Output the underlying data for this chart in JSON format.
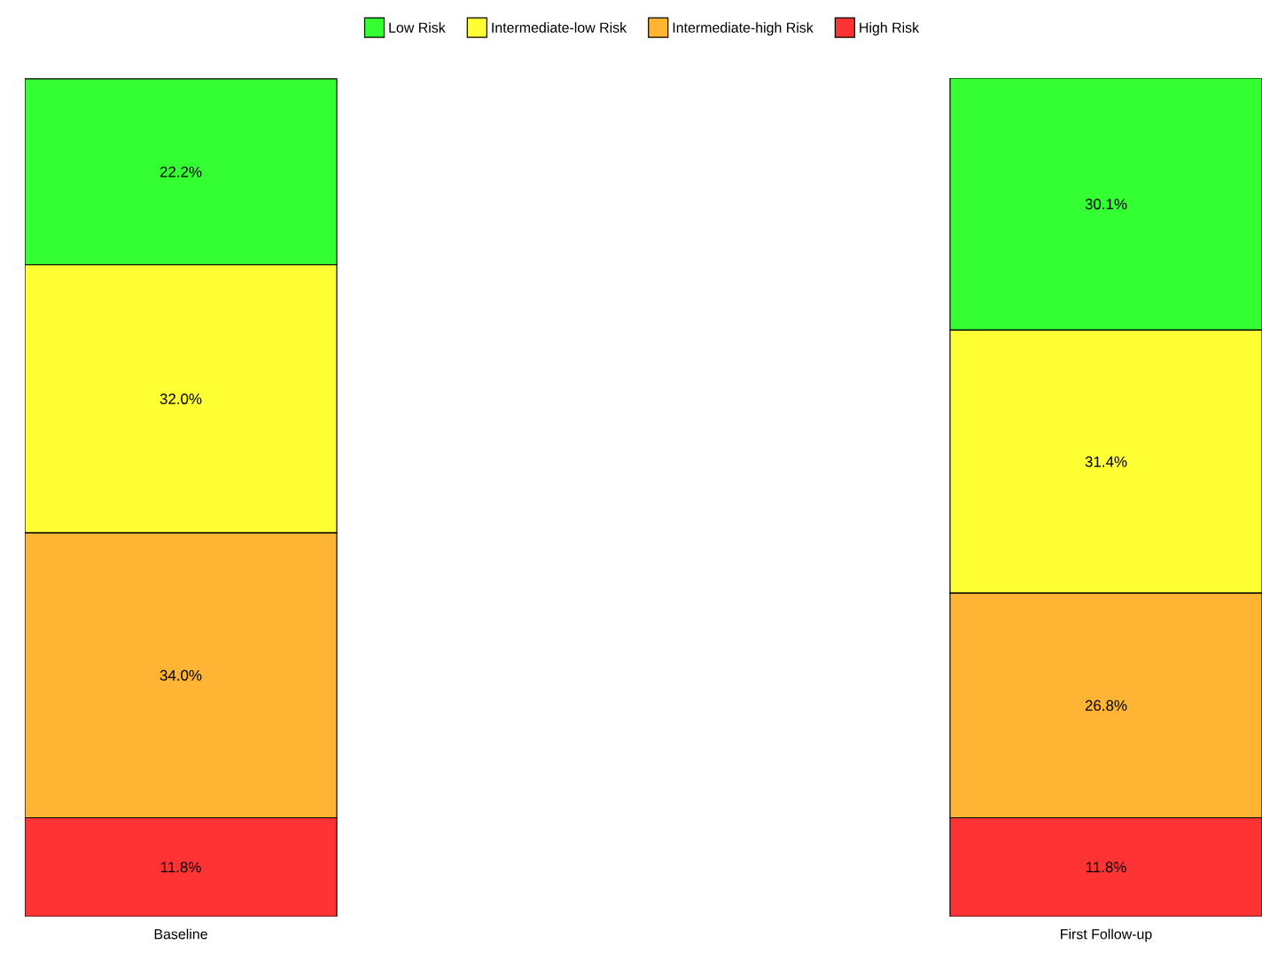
{
  "chart_data": {
    "type": "bar",
    "stacked": true,
    "categories": [
      "Baseline",
      "First Follow-up"
    ],
    "series": [
      {
        "name": "High Risk",
        "color": "#ff3333",
        "values": [
          11.8,
          11.8
        ],
        "value_labels": [
          "11.8%",
          "11.8%"
        ]
      },
      {
        "name": "Intermediate-high Risk",
        "color": "#ffb533",
        "values": [
          34.0,
          26.8
        ],
        "value_labels": [
          "34.0%",
          "26.8%"
        ]
      },
      {
        "name": "Intermediate-low Risk",
        "color": "#ffff33",
        "values": [
          32.0,
          31.4
        ],
        "value_labels": [
          "32.0%",
          "31.4%"
        ]
      },
      {
        "name": "Low Risk",
        "color": "#33ff33",
        "values": [
          22.2,
          30.1
        ],
        "value_labels": [
          "22.2%",
          "30.1%"
        ]
      }
    ],
    "legend": "top",
    "tick_labels": "x"
  }
}
